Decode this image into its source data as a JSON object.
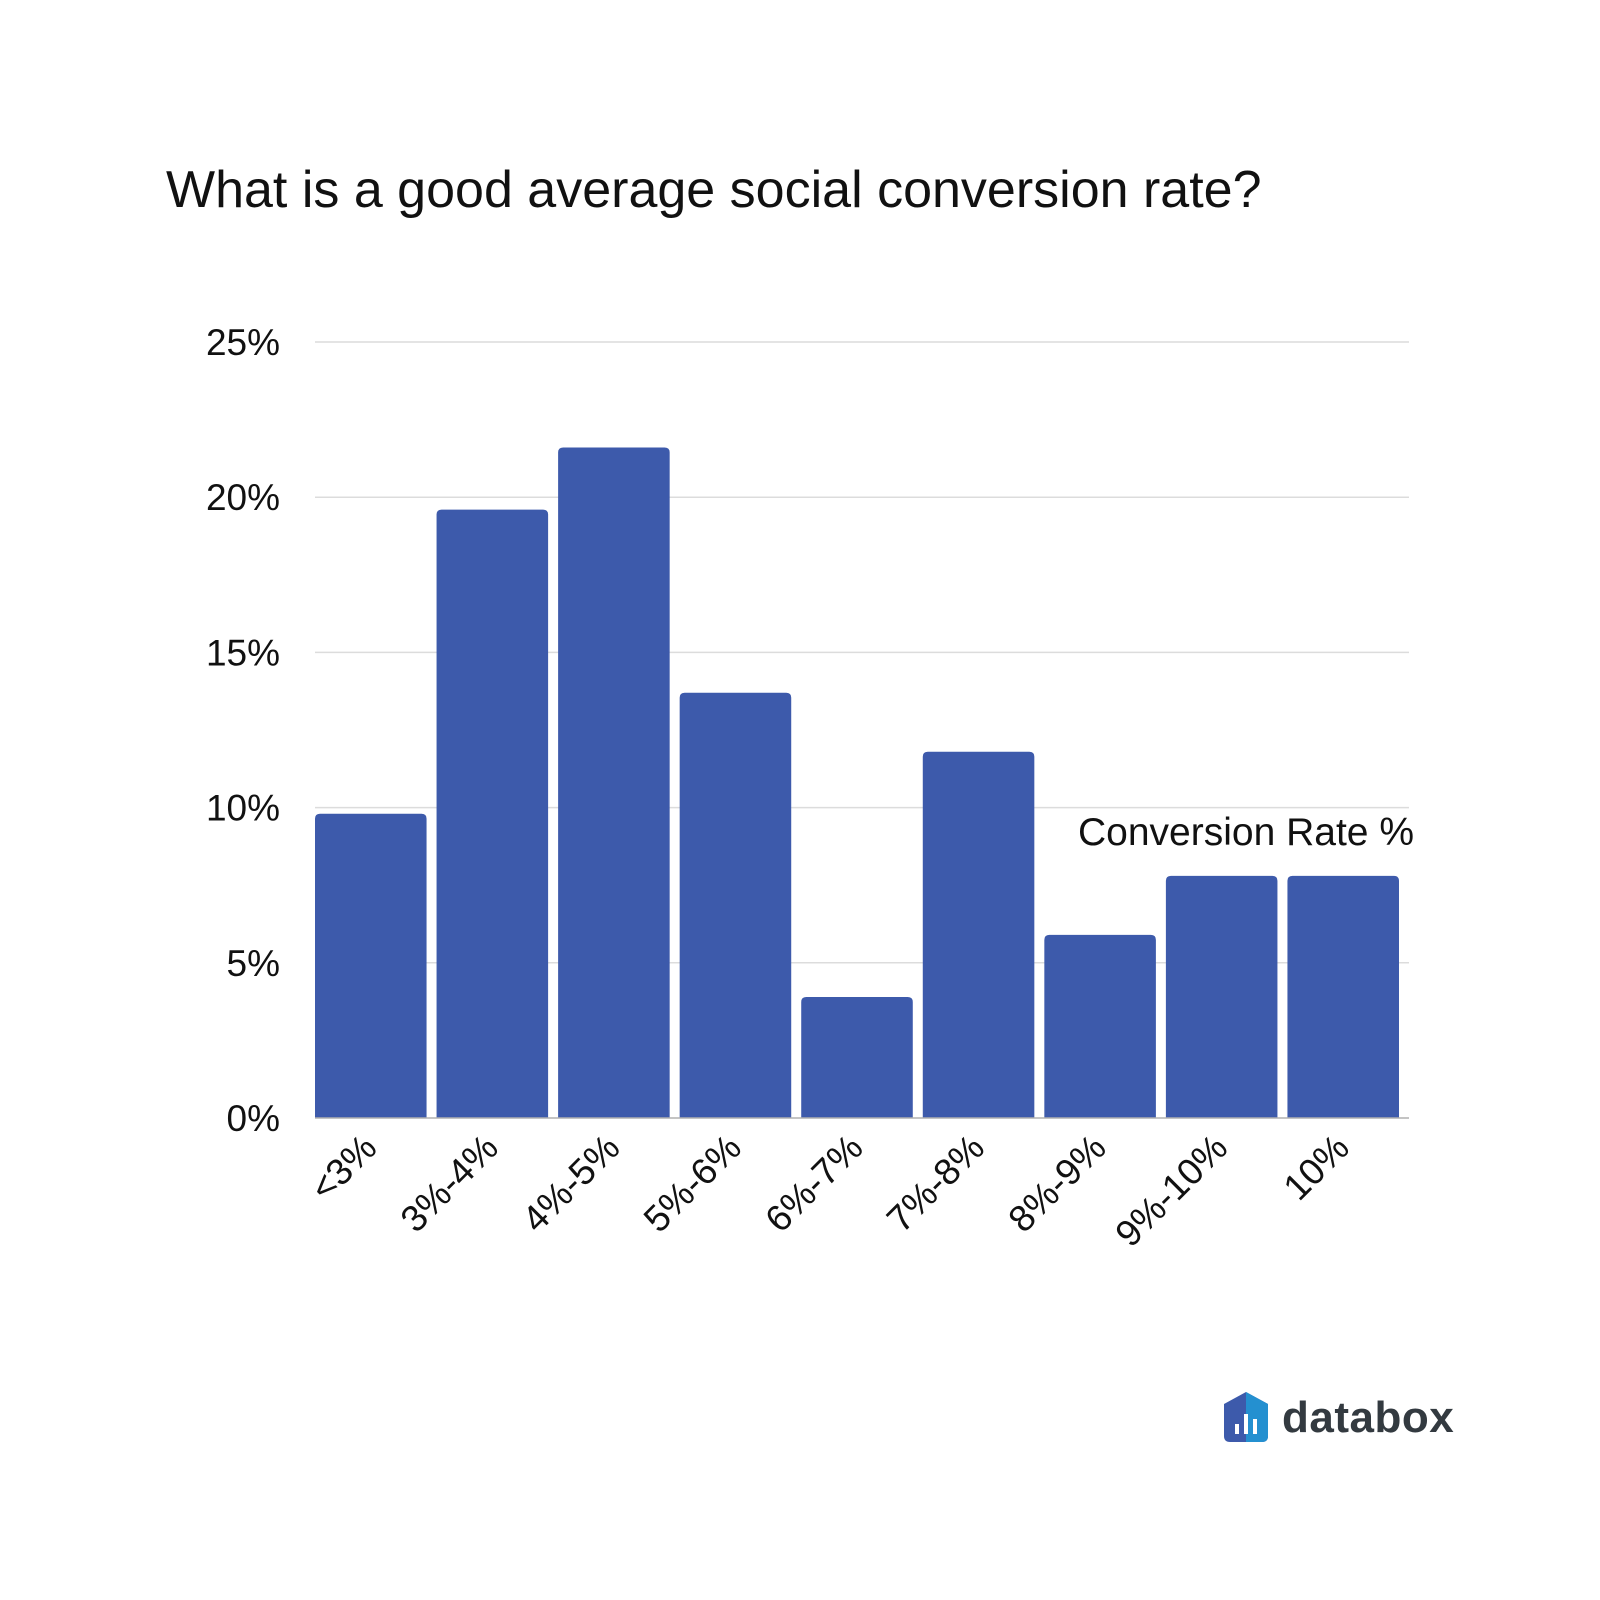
{
  "chart_data": {
    "type": "bar",
    "title": "What is a good average social conversion rate?",
    "categories": [
      "<3%",
      "3%-4%",
      "4%-5%",
      "5%-6%",
      "6%-7%",
      "7%-8%",
      "8%-9%",
      "9%-10%",
      "10%"
    ],
    "series": [
      {
        "name": "Conversion Rate %",
        "values": [
          9.8,
          19.6,
          21.6,
          13.7,
          3.9,
          11.8,
          5.9,
          7.8,
          7.8
        ],
        "color": "#3d5aab"
      }
    ],
    "xlabel": "",
    "ylabel": "",
    "ylim": [
      0,
      25
    ],
    "yticks": [
      0,
      5,
      10,
      15,
      20,
      25
    ],
    "ytick_labels": [
      "0%",
      "5%",
      "10%",
      "15%",
      "20%",
      "25%"
    ],
    "grid": true,
    "legend_placement": "inside-right"
  },
  "branding": {
    "logo_text": "databox",
    "colors": {
      "dark": "#3d5aab",
      "light": "#2490d0"
    }
  }
}
